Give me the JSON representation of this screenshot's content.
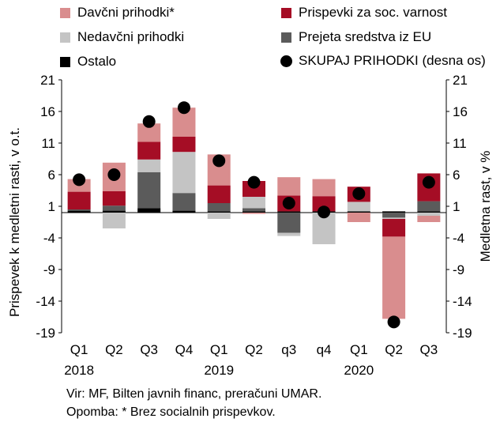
{
  "colors": {
    "davcni": "#d98d8e",
    "prispevki": "#a50d25",
    "nedavcni": "#c4c4c4",
    "eu": "#5b5b5b",
    "ostalo": "#000000",
    "skupaj": "#000000"
  },
  "legend": [
    {
      "key": "davcni",
      "label": "Davčni prihodki*",
      "kind": "square"
    },
    {
      "key": "prispevki",
      "label": "Prispevki za soc. varnost",
      "kind": "square"
    },
    {
      "key": "nedavcni",
      "label": "Nedavčni prihodki",
      "kind": "square"
    },
    {
      "key": "eu",
      "label": "Prejeta sredstva iz EU",
      "kind": "square"
    },
    {
      "key": "ostalo",
      "label": "Ostalo",
      "kind": "square"
    },
    {
      "key": "skupaj",
      "label": "SKUPAJ PRIHODKI (desna os)",
      "kind": "dot"
    }
  ],
  "chart_data": {
    "type": "bar",
    "stacked": true,
    "ylabel_left": "Prispevek k medletni rasti, v o.t.",
    "ylabel_right": "Medletna rast, v %",
    "ylim": [
      -19,
      21
    ],
    "yticks": [
      -19,
      -14,
      -9,
      -4,
      1,
      6,
      11,
      16,
      21
    ],
    "categories": [
      "Q1",
      "Q2",
      "Q3",
      "Q4",
      "Q1",
      "Q2",
      "q3",
      "q4",
      "Q1",
      "Q2",
      "Q3"
    ],
    "year_labels": [
      {
        "index": 0,
        "label": "2018"
      },
      {
        "index": 4,
        "label": "2019"
      },
      {
        "index": 8,
        "label": "2020"
      }
    ],
    "series": [
      {
        "key": "ostalo",
        "name": "Ostalo",
        "values": [
          0.3,
          0.3,
          0.7,
          0.3,
          0.2,
          0.2,
          0.2,
          0.2,
          0.2,
          0.2,
          0.2
        ]
      },
      {
        "key": "eu",
        "name": "Prejeta sredstva iz EU",
        "values": [
          0.2,
          0.8,
          5.7,
          2.8,
          1.3,
          0.5,
          -3.2,
          0.0,
          0.0,
          -0.8,
          1.6
        ]
      },
      {
        "key": "nedavcni",
        "name": "Nedavčni prihodki",
        "values": [
          0.0,
          -2.5,
          2.0,
          6.5,
          -1.0,
          1.8,
          -0.5,
          -5.0,
          1.5,
          -0.2,
          -0.5
        ]
      },
      {
        "key": "prispevki",
        "name": "Prispevki za soc. varnost",
        "values": [
          2.8,
          2.3,
          2.8,
          2.4,
          2.8,
          2.5,
          2.5,
          2.4,
          2.4,
          -2.8,
          4.4
        ]
      },
      {
        "key": "davcni",
        "name": "Davčni prihodki*",
        "values": [
          2.0,
          4.5,
          2.9,
          4.6,
          4.9,
          -0.2,
          2.9,
          2.7,
          -1.5,
          -13.0,
          -1.0
        ]
      }
    ],
    "total": {
      "key": "skupaj",
      "name": "SKUPAJ PRIHODKI (desna os)",
      "values": [
        5.2,
        6.0,
        14.4,
        16.6,
        8.2,
        4.8,
        1.5,
        0.1,
        3.0,
        -17.3,
        4.8
      ]
    }
  },
  "source": {
    "line1": "Vir: MF, Bilten javnih financ, preračuni UMAR.",
    "line2": "Opomba: * Brez socialnih prispevkov."
  }
}
